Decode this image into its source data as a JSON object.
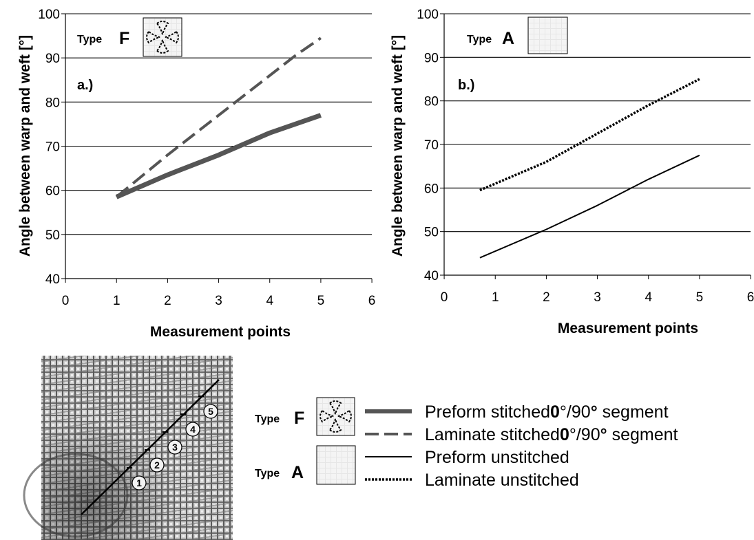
{
  "chart_data": [
    {
      "type": "line",
      "panel_label": "a.)",
      "type_label_prefix": "Type",
      "type_label_letter": "F",
      "xlabel": "Measurement points",
      "ylabel": "Angle between warp and weft [°]",
      "xlim": [
        0,
        6
      ],
      "ylim": [
        40,
        100
      ],
      "xticks": [
        "0",
        "1",
        "2",
        "3",
        "4",
        "5",
        "6"
      ],
      "yticks": [
        "40",
        "50",
        "60",
        "70",
        "80",
        "90",
        "100"
      ],
      "grid": "horizontal",
      "series": [
        {
          "name": "Preform stitched0°/90° segment",
          "style": "thick-solid",
          "color": "#555555",
          "x": [
            1,
            2,
            3,
            4,
            5
          ],
          "y": [
            58.5,
            63.5,
            68,
            73,
            77
          ]
        },
        {
          "name": "Laminate stitched0°/90° segment",
          "style": "dashed",
          "color": "#555555",
          "x": [
            1,
            2,
            3,
            4,
            4.5,
            5
          ],
          "y": [
            58.5,
            68,
            77,
            86,
            90.5,
            94.5
          ]
        }
      ]
    },
    {
      "type": "line",
      "panel_label": "b.)",
      "type_label_prefix": "Type",
      "type_label_letter": "A",
      "xlabel": "Measurement points",
      "ylabel": "Angle between warp and weft [°]",
      "xlim": [
        0,
        6
      ],
      "ylim": [
        40,
        100
      ],
      "xticks": [
        "0",
        "1",
        "2",
        "3",
        "4",
        "5",
        "6"
      ],
      "yticks": [
        "40",
        "50",
        "60",
        "70",
        "80",
        "90",
        "100"
      ],
      "grid": "horizontal",
      "series": [
        {
          "name": "Preform unstitched",
          "style": "thin-solid",
          "color": "#000000",
          "x": [
            0.7,
            2,
            3,
            4,
            5
          ],
          "y": [
            44,
            50.5,
            56,
            62,
            67.5
          ]
        },
        {
          "name": "Laminate unstitched",
          "style": "dotted",
          "color": "#000000",
          "x": [
            0.7,
            2,
            3,
            4,
            5
          ],
          "y": [
            59.5,
            66,
            72.5,
            79,
            85
          ]
        }
      ]
    }
  ],
  "legend": {
    "type_f": {
      "prefix": "Type",
      "letter": "F"
    },
    "type_a": {
      "prefix": "Type",
      "letter": "A"
    },
    "entries": [
      {
        "label_a": "Preform stitched",
        "label_b": "0",
        "label_c": "°/90",
        "label_d": "°",
        "label_e": " segment"
      },
      {
        "label_a": "Laminate stitched",
        "label_b": "0",
        "label_c": "°/90",
        "label_d": "°",
        "label_e": " segment"
      },
      {
        "label": "Preform unstitched"
      },
      {
        "label": "Laminate unstitched"
      }
    ]
  },
  "photo_markers": [
    "1",
    "2",
    "3",
    "4",
    "5"
  ],
  "colors": {
    "stitched": "#555555",
    "unstitched": "#000000",
    "grid": "#000000"
  }
}
